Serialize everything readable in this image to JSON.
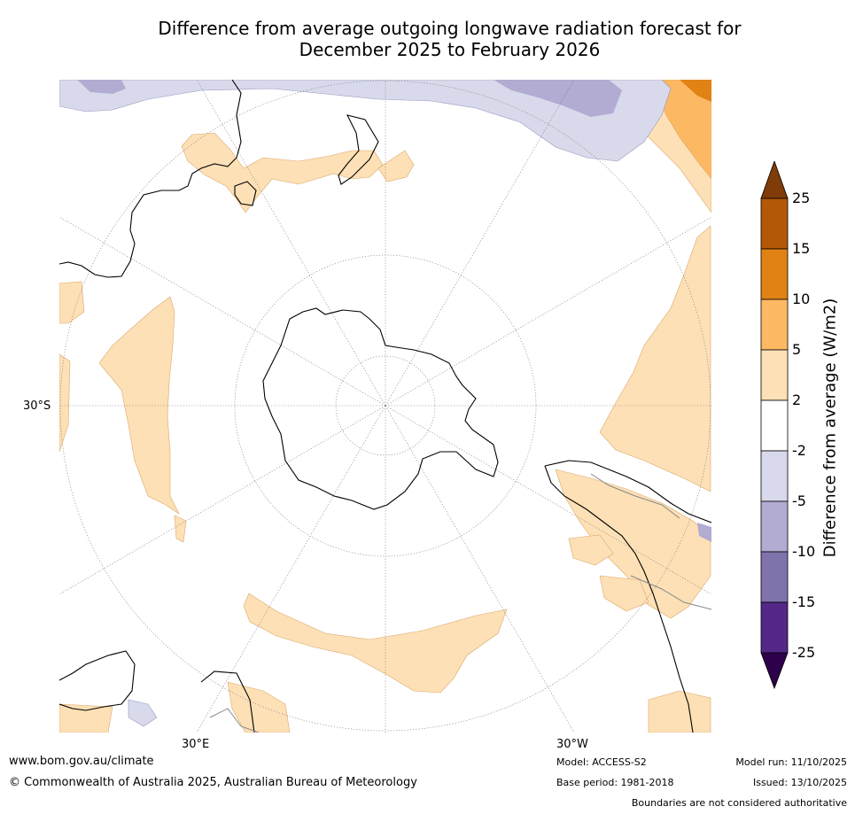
{
  "title": {
    "line1": "Difference from average outgoing longwave radiation forecast for",
    "line2": "December 2025 to February 2026"
  },
  "map": {
    "projection": "South polar stereographic",
    "graticule_labels": {
      "lat_left": "30°S",
      "lon_bottom_left": "30°E",
      "lon_bottom_right": "30°W"
    }
  },
  "colorbar": {
    "label": "Difference from average (W/m2)",
    "ticks": [
      "25",
      "15",
      "10",
      "5",
      "2",
      "-2",
      "-5",
      "-10",
      "-15",
      "-25"
    ],
    "bins": [
      {
        "range": ">25",
        "color": "#7f3b08"
      },
      {
        "range": "15 to 25",
        "color": "#b35806"
      },
      {
        "range": "10 to 15",
        "color": "#e08214"
      },
      {
        "range": "5 to 10",
        "color": "#fdb863"
      },
      {
        "range": "2 to 5",
        "color": "#fee0b6"
      },
      {
        "range": "-2 to 2",
        "color": "#ffffff"
      },
      {
        "range": "-5 to -2",
        "color": "#d8daeb"
      },
      {
        "range": "-10 to -5",
        "color": "#b2abd2"
      },
      {
        "range": "-15 to -10",
        "color": "#8073ac"
      },
      {
        "range": "-25 to -15",
        "color": "#542788"
      },
      {
        "range": "<-25",
        "color": "#2d004b"
      }
    ]
  },
  "footer": {
    "website": "www.bom.gov.au/climate",
    "copyright": "© Commonwealth of Australia 2025, Australian Bureau of Meteorology",
    "model": "Model: ACCESS-S2",
    "base_period": "Base period: 1981-2018",
    "model_run": "Model run: 11/10/2025",
    "issued": "Issued: 13/10/2025",
    "disclaimer": "Boundaries are not considered authoritative"
  }
}
